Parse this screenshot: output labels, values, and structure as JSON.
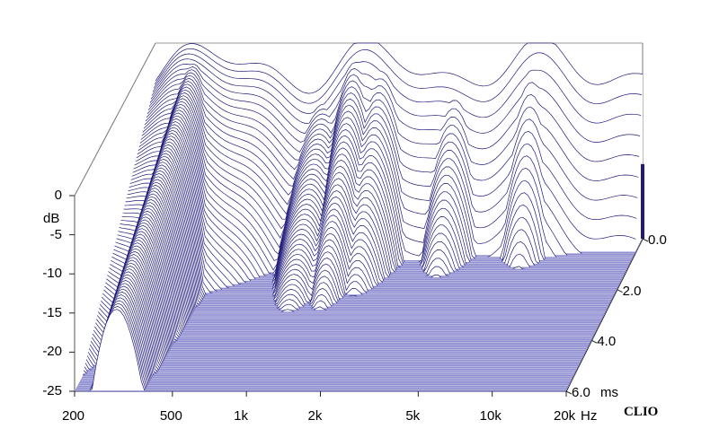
{
  "chart_data": {
    "type": "waterfall",
    "title": "",
    "x_axis": {
      "unit": "Hz",
      "scale": "log",
      "range": [
        200,
        20000
      ],
      "tick_labels": [
        "200",
        "500",
        "1k",
        "2k",
        "5k",
        "10k",
        "20k"
      ],
      "tick_values": [
        200,
        500,
        1000,
        2000,
        5000,
        10000,
        20000
      ]
    },
    "y_axis": {
      "unit": "dB",
      "range": [
        -25,
        0
      ],
      "tick_labels": [
        "0",
        "-5",
        "-10",
        "-15",
        "-20",
        "-25"
      ],
      "tick_values": [
        0,
        -5,
        -10,
        -15,
        -20,
        -25
      ]
    },
    "z_axis": {
      "unit": "ms",
      "range": [
        0,
        6
      ],
      "tick_labels": [
        "0.0",
        "2.0",
        "4.0",
        "6.0"
      ],
      "tick_values": [
        0,
        2,
        4,
        6
      ]
    },
    "colors": {
      "line": "#1f1a7a",
      "floor": "#8f8ed0"
    },
    "brand": "CLIO"
  }
}
